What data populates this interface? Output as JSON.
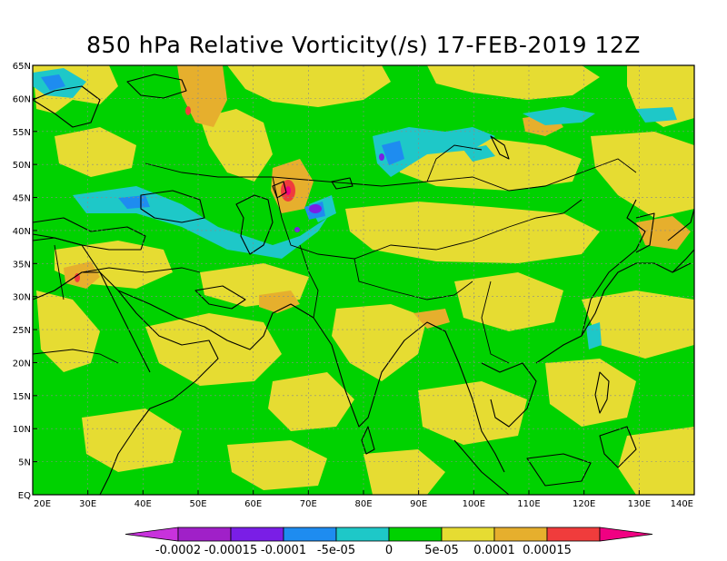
{
  "title": "850 hPa Relative Vorticity(/s) 17-FEB-2019 12Z",
  "colors": {
    "neg_0002": "#a020c8",
    "neg_00015": "#7a1ee6",
    "neg_0001": "#1e8cf0",
    "neg_5e05": "#1ec8c8",
    "zero_low": "#00d200",
    "zero_high": "#e6dc32",
    "pos_5e05": "#e6af2d",
    "pos_0001": "#f03c3c",
    "pos_00015": "#f00082"
  },
  "axes": {
    "x_ticks": [
      "20E",
      "30E",
      "40E",
      "50E",
      "60E",
      "70E",
      "80E",
      "90E",
      "100E",
      "110E",
      "120E",
      "130E",
      "140E"
    ],
    "y_ticks": [
      "EQ",
      "5N",
      "10N",
      "15N",
      "20N",
      "25N",
      "30N",
      "35N",
      "40N",
      "45N",
      "50N",
      "55N",
      "60N",
      "65N"
    ]
  },
  "colorbar": {
    "labels": [
      "-0.0002",
      "-0.00015",
      "-0.0001",
      "-5e-05",
      "0",
      "5e-05",
      "0.0001",
      "0.00015"
    ]
  }
}
